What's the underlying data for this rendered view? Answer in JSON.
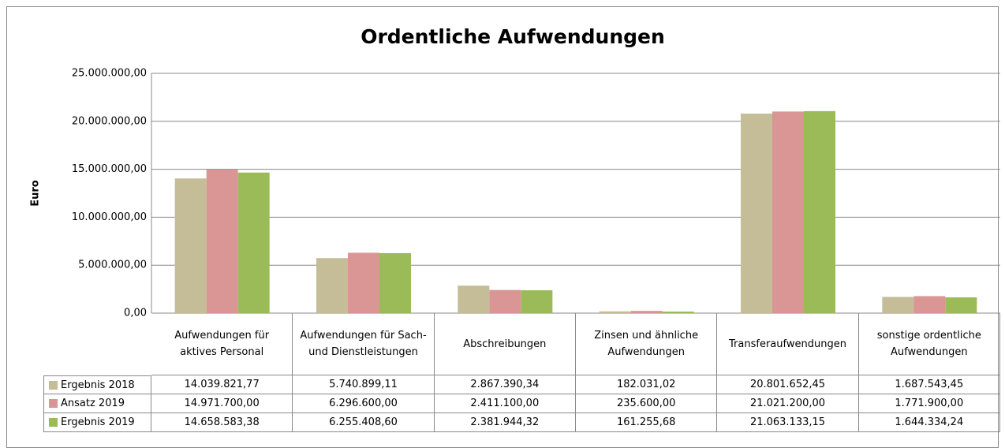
{
  "chart_data": {
    "type": "bar",
    "title": "Ordentliche Aufwendungen",
    "y_label": "Euro",
    "categories": [
      "Aufwendungen für aktives Personal",
      "Aufwendungen für Sach- und Dienstleistungen",
      "Abschreibungen",
      "Zinsen und ähnliche Aufwendungen",
      "Transferaufwendungen",
      "sonstige ordentliche Aufwendungen"
    ],
    "series": [
      {
        "name": "Ergebnis 2018",
        "color": "#c4bd97",
        "values": [
          14039821.77,
          5740899.11,
          2867390.34,
          182031.02,
          20801652.45,
          1687543.45
        ],
        "value_labels": [
          "14.039.821,77",
          "5.740.899,11",
          "2.867.390,34",
          "182.031,02",
          "20.801.652,45",
          "1.687.543,45"
        ]
      },
      {
        "name": "Ansatz 2019",
        "color": "#d99694",
        "values": [
          14971700.0,
          6296600.0,
          2411100.0,
          235600.0,
          21021200.0,
          1771900.0
        ],
        "value_labels": [
          "14.971.700,00",
          "6.296.600,00",
          "2.411.100,00",
          "235.600,00",
          "21.021.200,00",
          "1.771.900,00"
        ]
      },
      {
        "name": "Ergebnis 2019",
        "color": "#9bbb59",
        "values": [
          14658583.38,
          6255408.6,
          2381944.32,
          161255.68,
          21063133.15,
          1644334.24
        ],
        "value_labels": [
          "14.658.583,38",
          "6.255.408,60",
          "2.381.944,32",
          "161.255,68",
          "21.063.133,15",
          "1.644.334,24"
        ]
      }
    ],
    "ylim": [
      0,
      25000000
    ],
    "yticks": [
      {
        "value": 0,
        "label": "0,00"
      },
      {
        "value": 5000000,
        "label": "5.000.000,00"
      },
      {
        "value": 10000000,
        "label": "10.000.000,00"
      },
      {
        "value": 15000000,
        "label": "15.000.000,00"
      },
      {
        "value": 20000000,
        "label": "20.000.000,00"
      },
      {
        "value": 25000000,
        "label": "25.000.000,00"
      }
    ],
    "grid": true
  }
}
